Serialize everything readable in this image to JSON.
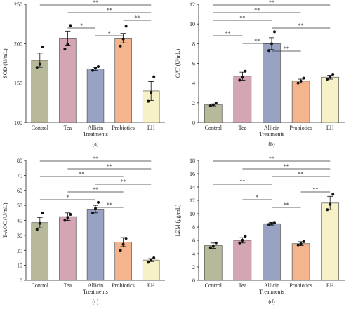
{
  "colors": {
    "Control": "#b8b89a",
    "Tea": "#d4a5b2",
    "Allicin": "#98a2c2",
    "Probiotics": "#f4b48e",
    "EH": "#f7f1c8"
  },
  "chart_data": [
    {
      "type": "bar",
      "panel_label": "(a)",
      "ylabel": "SOD (U/mL)",
      "xlabel": "Treatments",
      "ylim": [
        100,
        250
      ],
      "yticks": [
        100,
        150,
        200,
        250
      ],
      "categories": [
        "Control",
        "Tea",
        "Allicin",
        "Probiotics",
        "EH"
      ],
      "values": [
        179,
        207,
        168,
        207,
        140
      ],
      "errors": [
        9,
        9,
        2,
        6,
        12
      ],
      "points": [
        [
          170,
          174,
          196
        ],
        [
          193,
          199,
          223
        ],
        [
          166,
          169,
          171
        ],
        [
          197,
          206,
          222
        ],
        [
          127,
          138,
          158
        ]
      ],
      "significance": [
        {
          "from": "Control",
          "to": "EH",
          "label": "**"
        },
        {
          "from": "Tea",
          "to": "EH",
          "label": "**"
        },
        {
          "from": "Probiotics",
          "to": "EH",
          "label": "**"
        },
        {
          "from": "Tea",
          "to": "Allicin",
          "label": "*"
        },
        {
          "from": "Allicin",
          "to": "Probiotics",
          "label": "*"
        }
      ]
    },
    {
      "type": "bar",
      "panel_label": "(b)",
      "ylabel": "CAT (U/mL)",
      "xlabel": "Treatments",
      "ylim": [
        0,
        12
      ],
      "yticks": [
        0,
        2,
        4,
        6,
        8,
        10,
        12
      ],
      "categories": [
        "Control",
        "Tea",
        "Allicin",
        "Probiotics",
        "EH"
      ],
      "values": [
        1.8,
        4.7,
        8.0,
        4.2,
        4.6
      ],
      "errors": [
        0.1,
        0.4,
        0.6,
        0.2,
        0.2
      ],
      "points": [
        [
          1.7,
          1.8,
          2.0
        ],
        [
          4.3,
          4.6,
          5.2
        ],
        [
          7.3,
          8.0,
          9.2
        ],
        [
          4.0,
          4.2,
          4.5
        ],
        [
          4.4,
          4.6,
          4.9
        ]
      ],
      "significance": [
        {
          "from": "Control",
          "to": "EH",
          "label": "**"
        },
        {
          "from": "Control",
          "to": "Probiotics",
          "label": "**"
        },
        {
          "from": "Control",
          "to": "Allicin",
          "label": "**"
        },
        {
          "from": "Allicin",
          "to": "EH",
          "label": "**"
        },
        {
          "from": "Control",
          "to": "Tea",
          "label": "**"
        },
        {
          "from": "Tea",
          "to": "Allicin",
          "label": "**"
        },
        {
          "from": "Allicin",
          "to": "Probiotics",
          "label": "**"
        }
      ]
    },
    {
      "type": "bar",
      "panel_label": "(c)",
      "ylabel": "T-AOC (U/mL)",
      "xlabel": "Treatments",
      "ylim": [
        0,
        80
      ],
      "yticks": [
        0,
        10,
        20,
        30,
        40,
        50,
        60,
        70,
        80
      ],
      "categories": [
        "Control",
        "Tea",
        "Allicin",
        "Probiotics",
        "EH"
      ],
      "values": [
        38.5,
        42.5,
        47.5,
        25.5,
        13.5
      ],
      "errors": [
        3.5,
        2.5,
        2.5,
        3,
        1
      ],
      "points": [
        [
          34,
          38,
          45
        ],
        [
          40,
          42,
          44
        ],
        [
          45,
          48,
          52
        ],
        [
          20,
          24,
          28
        ],
        [
          12,
          13.5,
          15
        ]
      ],
      "significance": [
        {
          "from": "Control",
          "to": "EH",
          "label": "**"
        },
        {
          "from": "Tea",
          "to": "EH",
          "label": "**"
        },
        {
          "from": "Control",
          "to": "Probiotics",
          "label": "**"
        },
        {
          "from": "Allicin",
          "to": "EH",
          "label": "**"
        },
        {
          "from": "Tea",
          "to": "Probiotics",
          "label": "**"
        },
        {
          "from": "Control",
          "to": "Allicin",
          "label": "*"
        },
        {
          "from": "Allicin",
          "to": "Probiotics",
          "label": "**"
        }
      ]
    },
    {
      "type": "bar",
      "panel_label": "(d)",
      "ylabel": "LZM (μg/mL)",
      "xlabel": "Treatments",
      "ylim": [
        0,
        18
      ],
      "yticks": [
        0,
        2,
        4,
        6,
        8,
        10,
        12,
        14,
        16,
        18
      ],
      "categories": [
        "Control",
        "Tea",
        "Allicin",
        "Probiotics",
        "EH"
      ],
      "values": [
        5.2,
        6.0,
        8.5,
        5.5,
        11.6
      ],
      "errors": [
        0.4,
        0.4,
        0.2,
        0.3,
        1.0
      ],
      "points": [
        [
          4.9,
          5.1,
          5.6
        ],
        [
          5.6,
          6.0,
          6.6
        ],
        [
          8.4,
          8.5,
          8.6
        ],
        [
          5.3,
          5.5,
          5.8
        ],
        [
          10.6,
          11.4,
          12.9
        ]
      ],
      "significance": [
        {
          "from": "Control",
          "to": "EH",
          "label": "**"
        },
        {
          "from": "Tea",
          "to": "EH",
          "label": "**"
        },
        {
          "from": "Allicin",
          "to": "EH",
          "label": "**"
        },
        {
          "from": "Control",
          "to": "Allicin",
          "label": "**"
        },
        {
          "from": "Probiotics",
          "to": "EH",
          "label": "**"
        },
        {
          "from": "Tea",
          "to": "Allicin",
          "label": "*"
        },
        {
          "from": "Allicin",
          "to": "Probiotics",
          "label": "**"
        }
      ]
    }
  ]
}
